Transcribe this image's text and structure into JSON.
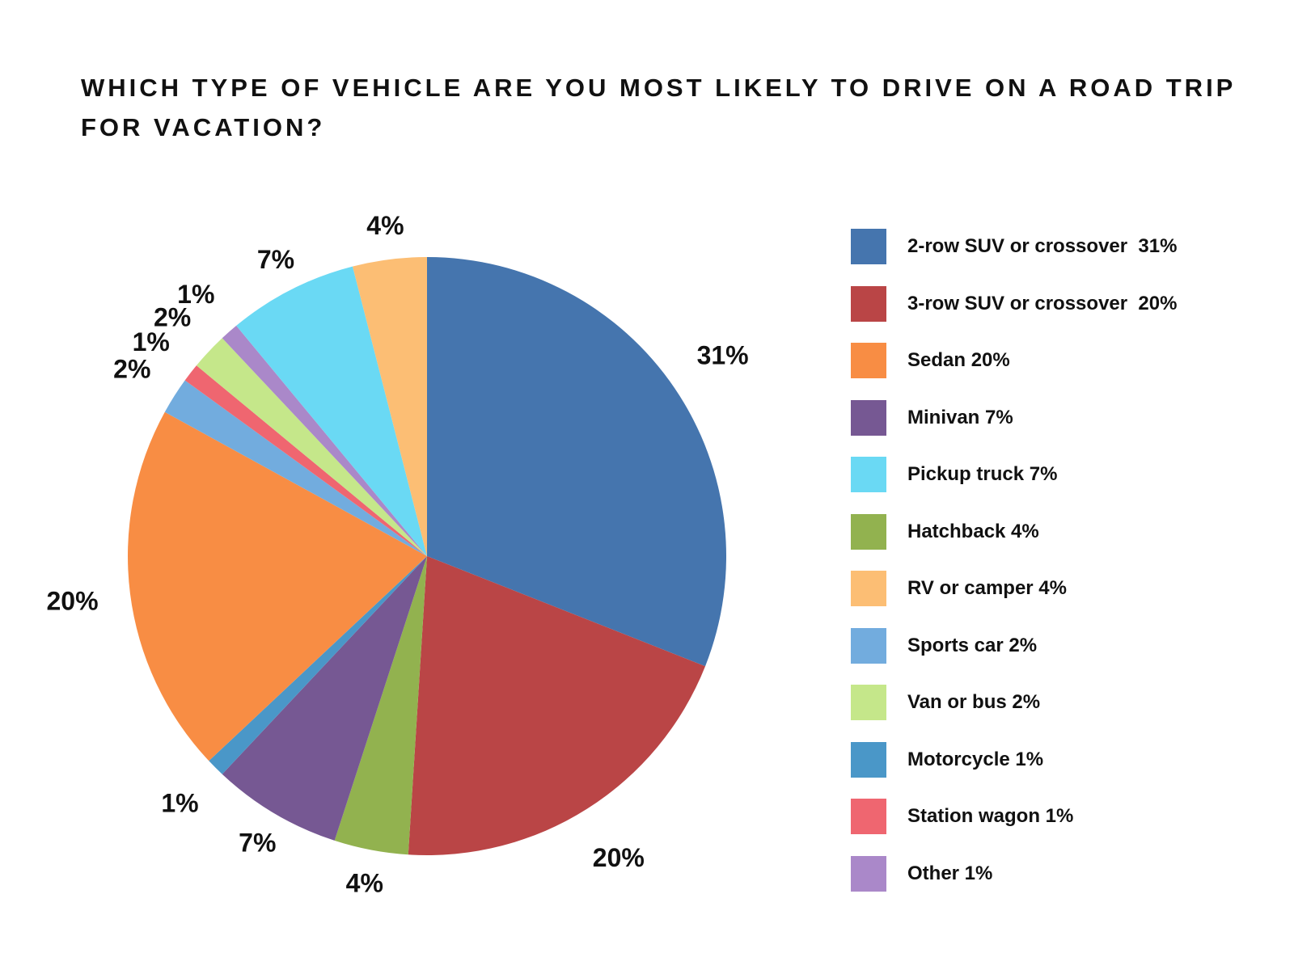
{
  "chart_data": {
    "type": "pie",
    "title": "WHICH TYPE OF VEHICLE ARE YOU MOST LIKELY TO DRIVE ON A ROAD TRIP FOR VACATION?",
    "start_angle_deg": 0,
    "direction": "clockwise",
    "legend_position": "right",
    "slices": [
      {
        "name": "2-row SUV or crossover",
        "value": 31,
        "label": "31%",
        "legend": "2-row SUV or crossover  31%",
        "color": "#4575AE"
      },
      {
        "name": "3-row SUV or crossover",
        "value": 20,
        "label": "20%",
        "legend": "3-row SUV or crossover  20%",
        "color": "#BA4546"
      },
      {
        "name": "Hatchback",
        "value": 4,
        "label": "4%",
        "legend": "Hatchback 4%",
        "color": "#92B24F"
      },
      {
        "name": "Minivan",
        "value": 7,
        "label": "7%",
        "legend": "Minivan 7%",
        "color": "#765893"
      },
      {
        "name": "Motorcycle",
        "value": 1,
        "label": "1%",
        "legend": "Motorcycle 1%",
        "color": "#4A97C8"
      },
      {
        "name": "Sedan",
        "value": 20,
        "label": "20%",
        "legend": "Sedan 20%",
        "color": "#F88D44"
      },
      {
        "name": "Sports car",
        "value": 2,
        "label": "2%",
        "legend": "Sports car 2%",
        "color": "#72ACDE"
      },
      {
        "name": "Station wagon",
        "value": 1,
        "label": "1%",
        "legend": "Station wagon 1%",
        "color": "#EF6670"
      },
      {
        "name": "Van or bus",
        "value": 2,
        "label": "2%",
        "legend": "Van or bus 2%",
        "color": "#C5E78A"
      },
      {
        "name": "Other",
        "value": 1,
        "label": "1%",
        "legend": "Other 1%",
        "color": "#AA88C9"
      },
      {
        "name": "Pickup truck",
        "value": 7,
        "label": "7%",
        "legend": "Pickup truck 7%",
        "color": "#6AD9F4"
      },
      {
        "name": "RV or camper",
        "value": 4,
        "label": "4%",
        "legend": "RV or camper 4%",
        "color": "#FCBE74"
      }
    ],
    "legend_order": [
      "2-row SUV or crossover",
      "3-row SUV or crossover",
      "Sedan",
      "Minivan",
      "Pickup truck",
      "Hatchback",
      "RV or camper",
      "Sports car",
      "Van or bus",
      "Motorcycle",
      "Station wagon",
      "Other"
    ]
  }
}
